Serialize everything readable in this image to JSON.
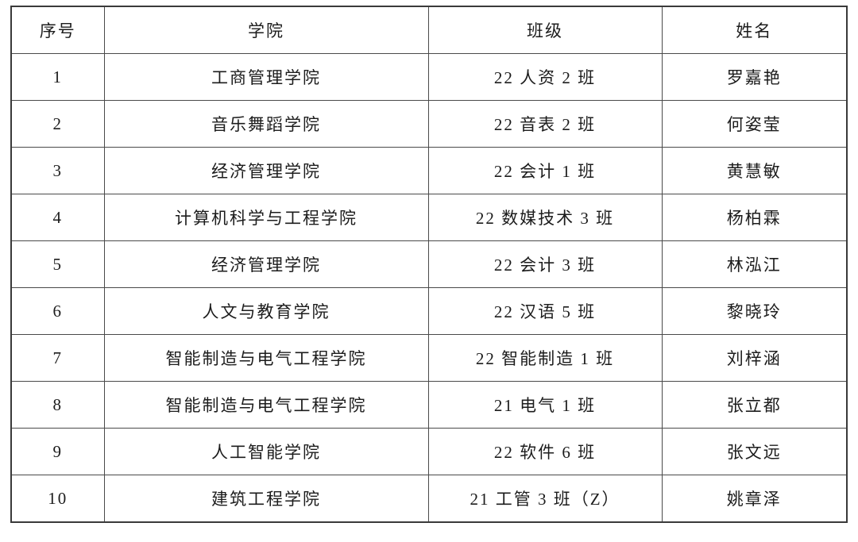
{
  "page": {
    "background_color": "#ffffff",
    "text_color": "#1c1c1c",
    "border_color": "#4a4a4a"
  },
  "table": {
    "headers": [
      "序号",
      "学院",
      "班级",
      "姓名"
    ],
    "rows": [
      {
        "seq": "1",
        "college": "工商管理学院",
        "class": "22 人资 2 班",
        "name": "罗嘉艳"
      },
      {
        "seq": "2",
        "college": "音乐舞蹈学院",
        "class": "22 音表 2 班",
        "name": "何姿莹"
      },
      {
        "seq": "3",
        "college": "经济管理学院",
        "class": "22 会计 1 班",
        "name": "黄慧敏"
      },
      {
        "seq": "4",
        "college": "计算机科学与工程学院",
        "class": "22 数媒技术 3 班",
        "name": "杨柏霖"
      },
      {
        "seq": "5",
        "college": "经济管理学院",
        "class": "22 会计 3 班",
        "name": "林泓江"
      },
      {
        "seq": "6",
        "college": "人文与教育学院",
        "class": "22 汉语 5 班",
        "name": "黎晓玲"
      },
      {
        "seq": "7",
        "college": "智能制造与电气工程学院",
        "class": "22 智能制造 1 班",
        "name": "刘梓涵"
      },
      {
        "seq": "8",
        "college": "智能制造与电气工程学院",
        "class": "21 电气 1 班",
        "name": "张立都"
      },
      {
        "seq": "9",
        "college": "人工智能学院",
        "class": "22 软件 6 班",
        "name": "张文远"
      },
      {
        "seq": "10",
        "college": "建筑工程学院",
        "class": "21 工管 3 班（Z）",
        "name": "姚章泽"
      }
    ]
  }
}
